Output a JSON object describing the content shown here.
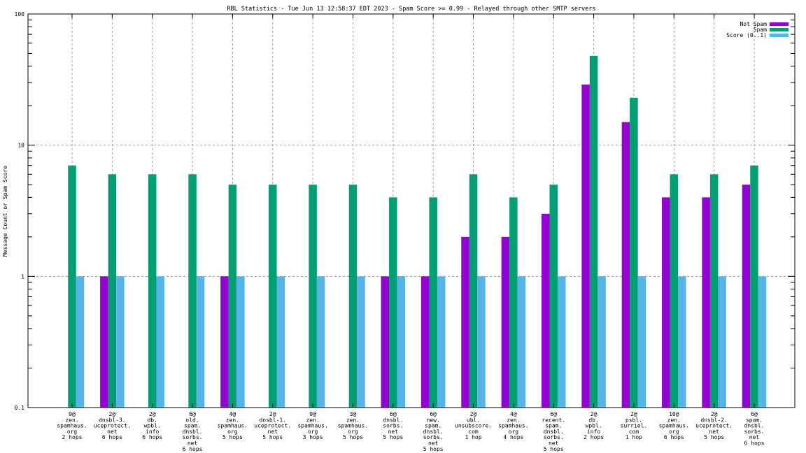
{
  "chart_data": {
    "type": "bar",
    "title": "RBL Statistics - Tue Jun 13 12:58:37 EDT 2023 - Spam Score >= 0.99 - Relayed through other SMTP servers",
    "xlabel": "",
    "ylabel": "Message Count or Spam Score",
    "yscale": "log",
    "ylim": [
      0.1,
      100
    ],
    "yticks": [
      "0.1",
      "1",
      "10",
      "100"
    ],
    "ytick_values": [
      0.1,
      1,
      10,
      100
    ],
    "grid": true,
    "legend_position": "top-right",
    "categories": [
      [
        "9@",
        "zen.",
        "spamhaus.",
        "org",
        "2 hops"
      ],
      [
        "2@",
        "dnsbl-3.",
        "uceprotect.",
        "net",
        "6 hops"
      ],
      [
        "2@",
        "db.",
        "wpbl.",
        "info",
        "6 hops"
      ],
      [
        "6@",
        "old.",
        "spam.",
        "dnsbl.",
        "sorbs.",
        "net",
        "6 hops"
      ],
      [
        "4@",
        "zen.",
        "spamhaus.",
        "org",
        "5 hops"
      ],
      [
        "2@",
        "dnsbl-1.",
        "uceprotect.",
        "net",
        "5 hops"
      ],
      [
        "9@",
        "zen.",
        "spamhaus.",
        "org",
        "3 hops"
      ],
      [
        "3@",
        "zen.",
        "spamhaus.",
        "org",
        "5 hops"
      ],
      [
        "6@",
        "dnsbl.",
        "sorbs.",
        "net",
        "5 hops"
      ],
      [
        "6@",
        "new.",
        "spam.",
        "dnsbl.",
        "sorbs.",
        "net",
        "5 hops"
      ],
      [
        "2@",
        "ubl.",
        "unsubscore.",
        "com",
        "1 hop"
      ],
      [
        "4@",
        "zen.",
        "spamhaus.",
        "org",
        "4 hops"
      ],
      [
        "6@",
        "recent.",
        "spam.",
        "dnsbl.",
        "sorbs.",
        "net",
        "5 hops"
      ],
      [
        "2@",
        "db.",
        "wpbl.",
        "info",
        "2 hops"
      ],
      [
        "2@",
        "psbl.",
        "surriel.",
        "com",
        "1 hop"
      ],
      [
        "10@",
        "zen.",
        "spamhaus.",
        "org",
        "6 hops"
      ],
      [
        "2@",
        "dnsbl-2.",
        "uceprotect.",
        "net",
        "5 hops"
      ],
      [
        "6@",
        "spam.",
        "dnsbl.",
        "sorbs.",
        "net",
        "6 hops"
      ]
    ],
    "series": [
      {
        "name": "Not Spam",
        "color": "#9400d3",
        "values": [
          0,
          1,
          0,
          0,
          1,
          0,
          0,
          0,
          1,
          1,
          2,
          2,
          3,
          29,
          15,
          4,
          4,
          5
        ]
      },
      {
        "name": "Spam",
        "color": "#009e73",
        "values": [
          7,
          6,
          6,
          6,
          5,
          5,
          5,
          5,
          4,
          4,
          6,
          4,
          5,
          48,
          23,
          6,
          6,
          7
        ]
      },
      {
        "name": "Score (0..1)",
        "color": "#56b4e9",
        "values": [
          1,
          1,
          1,
          1,
          1,
          1,
          1,
          1,
          1,
          1,
          1,
          1,
          1,
          1,
          1,
          1,
          1,
          1
        ]
      }
    ]
  }
}
